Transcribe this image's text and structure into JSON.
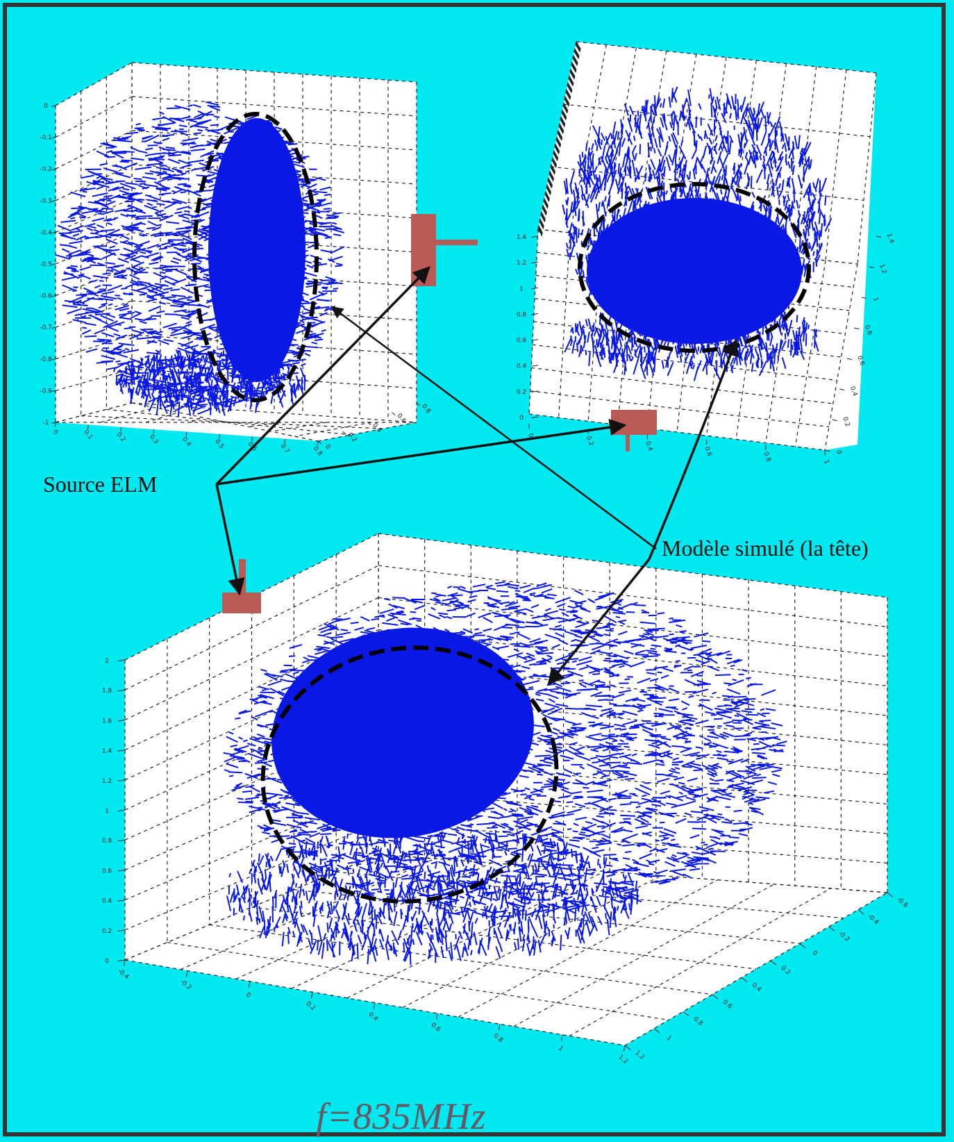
{
  "labels": {
    "source": "Source ELM",
    "model": "Modèle simulé (la tête)",
    "frequency": "f=835MHz"
  },
  "colors": {
    "background": "#00e8f0",
    "field": "#0a18e6",
    "source_block": "#b85a55",
    "arrow": "#111111",
    "grid": "#222222",
    "panel": "#ffffff"
  },
  "plots": {
    "top_left": {
      "z_ticks": [
        "0",
        "-0.1",
        "-0.2",
        "-0.3",
        "-0.4",
        "-0.5",
        "-0.6",
        "-0.7",
        "-0.8",
        "-0.9",
        "-1"
      ],
      "x_ticks": [
        "0",
        "0.1",
        "0.2",
        "0.3",
        "0.4",
        "0.5",
        "0.6",
        "0.7",
        "0.8"
      ],
      "y_ticks": [
        "0",
        "0.2",
        "0.4",
        "0.6",
        "0.8"
      ]
    },
    "top_right": {
      "z_ticks": [
        "0",
        "0.2",
        "0.4",
        "0.6",
        "0.8",
        "1",
        "1.2",
        "1.4"
      ],
      "x_ticks": [
        "0",
        "0.2",
        "0.4",
        "0.6",
        "0.8",
        "1"
      ],
      "y_ticks": [
        "0",
        "0.2",
        "0.4",
        "0.6",
        "0.8",
        "1",
        "1.2",
        "1.4"
      ]
    },
    "bottom": {
      "z_ticks": [
        "0",
        "0.2",
        "0.4",
        "0.6",
        "0.8",
        "1",
        "1.2",
        "1.4",
        "1.6",
        "1.8",
        "2"
      ],
      "x_ticks": [
        "-0.4",
        "-0.2",
        "0",
        "0.2",
        "0.4",
        "0.6",
        "0.8",
        "1",
        "1.2"
      ],
      "y_ticks": [
        "-0.6",
        "-0.4",
        "-0.2",
        "0",
        "0.2",
        "0.4",
        "0.6",
        "0.8",
        "1",
        "1.2"
      ]
    }
  }
}
